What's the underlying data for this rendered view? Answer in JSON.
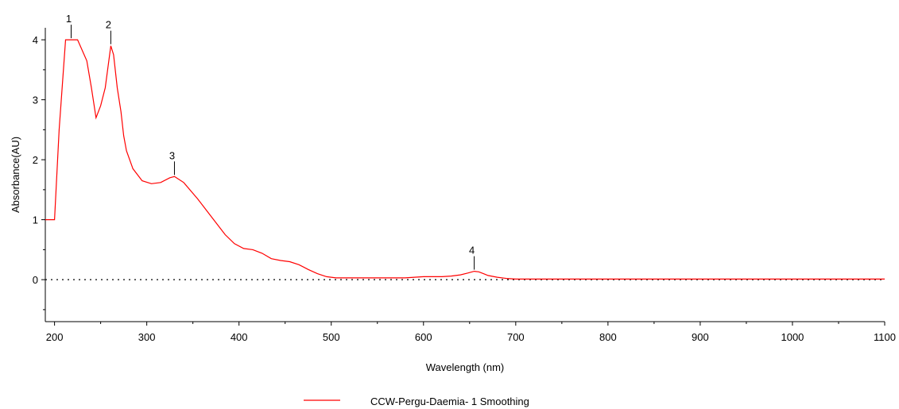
{
  "chart_data": {
    "type": "line",
    "title": "",
    "xlabel": "Wavelength (nm)",
    "ylabel": "Absorbance(AU)",
    "xlim": [
      190,
      1100
    ],
    "ylim": [
      -0.7,
      4.2
    ],
    "xticks": [
      200,
      300,
      400,
      500,
      600,
      700,
      800,
      900,
      1000,
      1100
    ],
    "yticks": [
      0,
      1,
      2,
      3,
      4
    ],
    "baseline": 0,
    "legend_position": "bottom-center",
    "grid": false,
    "series": [
      {
        "name": "CCW-Pergu-Daemia- 1 Smoothing",
        "color": "#ff0000",
        "x": [
          190,
          200,
          205,
          212,
          225,
          235,
          240,
          245,
          250,
          255,
          258,
          261,
          264,
          268,
          272,
          275,
          278,
          285,
          295,
          305,
          315,
          325,
          330,
          340,
          355,
          370,
          385,
          395,
          405,
          415,
          425,
          435,
          445,
          455,
          465,
          475,
          485,
          495,
          505,
          520,
          560,
          580,
          600,
          620,
          630,
          640,
          648,
          655,
          660,
          665,
          670,
          680,
          690,
          700,
          720,
          800,
          1000,
          1100
        ],
        "y": [
          1.0,
          1.0,
          2.5,
          4.0,
          4.0,
          3.65,
          3.2,
          2.7,
          2.9,
          3.2,
          3.55,
          3.9,
          3.75,
          3.2,
          2.8,
          2.4,
          2.15,
          1.85,
          1.65,
          1.6,
          1.62,
          1.7,
          1.72,
          1.62,
          1.35,
          1.05,
          0.75,
          0.6,
          0.52,
          0.5,
          0.44,
          0.35,
          0.32,
          0.3,
          0.25,
          0.17,
          0.1,
          0.05,
          0.03,
          0.03,
          0.03,
          0.03,
          0.05,
          0.05,
          0.06,
          0.08,
          0.11,
          0.14,
          0.13,
          0.1,
          0.07,
          0.04,
          0.02,
          0.01,
          0.01,
          0.01,
          0.01,
          0.01
        ]
      }
    ],
    "peaks": [
      {
        "label": "1",
        "x": 218,
        "y": 4.0
      },
      {
        "label": "2",
        "x": 261,
        "y": 3.9
      },
      {
        "label": "3",
        "x": 330,
        "y": 1.72
      },
      {
        "label": "4",
        "x": 655,
        "y": 0.14
      }
    ]
  }
}
